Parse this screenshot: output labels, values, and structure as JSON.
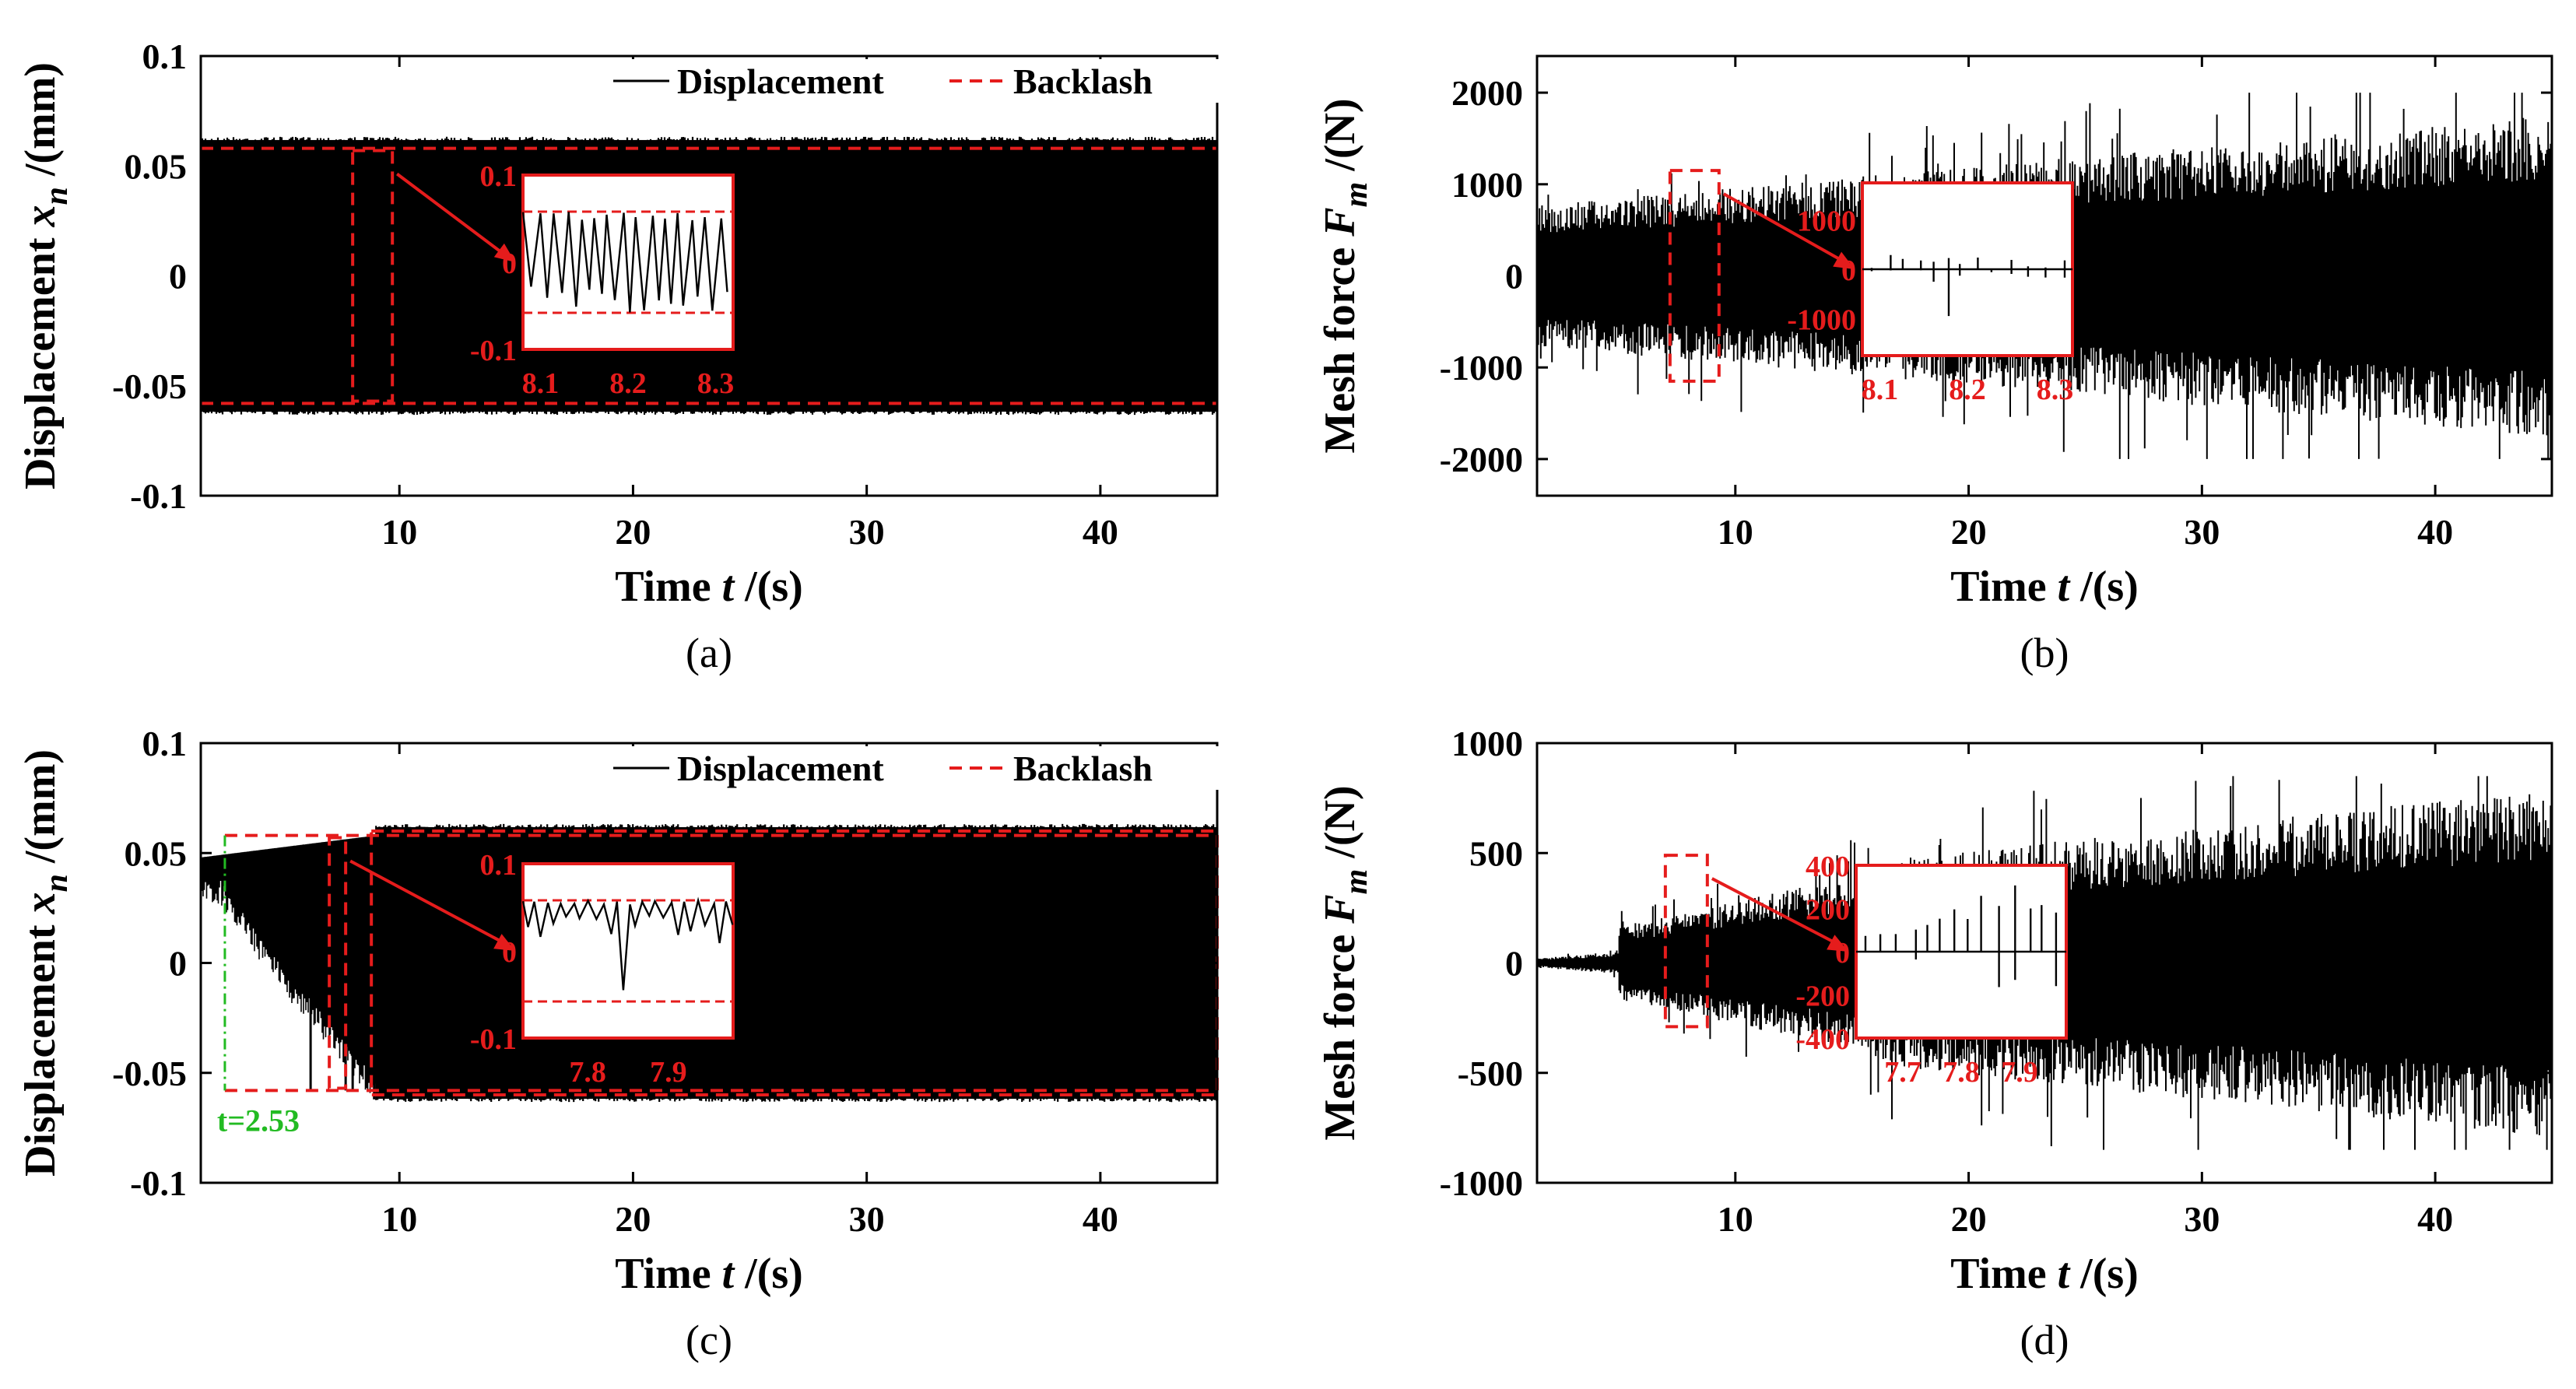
{
  "chart_data": [
    {
      "id": "a",
      "type": "line",
      "caption": "(a)",
      "xlabel": "Time t /(s)",
      "ylabel": "Displacement x_n /(mm)",
      "xlim": [
        1.5,
        45
      ],
      "ylim": [
        -0.1,
        0.1
      ],
      "xticks": [
        10,
        20,
        30,
        40
      ],
      "xtick_labels": [
        "10",
        "20",
        "30",
        "40"
      ],
      "yticks": [
        0.1,
        0.05,
        0,
        -0.05,
        -0.1
      ],
      "ytick_labels": [
        "0.1",
        "0.05",
        "0",
        "-0.05",
        "-0.1"
      ],
      "series": [
        {
          "name": "Displacement",
          "style": "solid",
          "color": "#000000",
          "signal": {
            "kind": "band",
            "start": 1.5,
            "low": -0.0625,
            "high": 0.0625
          }
        },
        {
          "name": "Backlash",
          "style": "dashed",
          "color": "#e51c1c",
          "values": [
            -0.058,
            0.058
          ]
        }
      ],
      "legend": {
        "entries": [
          "Displacement",
          "Backlash"
        ],
        "position": "top-right"
      },
      "zoom_box": {
        "x": [
          8.0,
          9.7
        ],
        "y": [
          -0.057,
          0.057
        ]
      },
      "inset": {
        "x_range": [
          8.08,
          8.32
        ],
        "y_range": [
          -0.1,
          0.1
        ],
        "xticks": [
          8.1,
          8.2,
          8.3
        ],
        "xtick_labels": [
          "8.1",
          "8.2",
          "8.3"
        ],
        "yticks": [
          0.1,
          0,
          -0.1
        ],
        "ytick_labels": [
          "0.1",
          "0",
          "-0.1"
        ],
        "backlash": 0.058,
        "signal": "impacting"
      }
    },
    {
      "id": "b",
      "type": "line",
      "caption": "(b)",
      "xlabel": "Time t /(s)",
      "ylabel": "Mesh force F_m /(N)",
      "xlim": [
        1.5,
        45
      ],
      "ylim": [
        -2400,
        2400
      ],
      "xticks": [
        10,
        20,
        30,
        40
      ],
      "xtick_labels": [
        "10",
        "20",
        "30",
        "40"
      ],
      "yticks": [
        2000,
        1000,
        0,
        -1000,
        -2000
      ],
      "ytick_labels": [
        "2000",
        "1000",
        "0",
        "-1000",
        "-2000"
      ],
      "series": [
        {
          "name": "Mesh force",
          "style": "solid",
          "color": "#000000",
          "signal": {
            "kind": "growing",
            "start": 1.5,
            "amplitude_start": 700,
            "amplitude_end": 1600,
            "peak_max": 2000
          }
        }
      ],
      "zoom_box": {
        "x": [
          7.2,
          9.3
        ],
        "y": [
          -1150,
          1150
        ]
      },
      "inset": {
        "x_range": [
          8.08,
          8.32
        ],
        "y_range": [
          -1750,
          1750
        ],
        "xticks": [
          8.1,
          8.2,
          8.3
        ],
        "xtick_labels": [
          "8.1",
          "8.2",
          "8.3"
        ],
        "yticks": [
          1000,
          0,
          -1000
        ],
        "ytick_labels": [
          "1000",
          "0",
          "-1000"
        ],
        "signal": "spikes"
      }
    },
    {
      "id": "c",
      "type": "line",
      "caption": "(c)",
      "xlabel": "Time t /(s)",
      "ylabel": "Displacement x_n /(mm)",
      "xlim": [
        1.5,
        45
      ],
      "ylim": [
        -0.1,
        0.1
      ],
      "xticks": [
        10,
        20,
        30,
        40
      ],
      "xtick_labels": [
        "10",
        "20",
        "30",
        "40"
      ],
      "yticks": [
        0.1,
        0.05,
        0,
        -0.05,
        -0.1
      ],
      "ytick_labels": [
        "0.1",
        "0.05",
        "0",
        "-0.05",
        "-0.1"
      ],
      "series": [
        {
          "name": "Displacement",
          "style": "solid",
          "color": "#000000",
          "signal": {
            "kind": "band",
            "start": 9.0,
            "low": -0.0625,
            "high": 0.0625,
            "transient_start": 1.5,
            "transient_end": 9.0
          }
        },
        {
          "name": "Backlash",
          "style": "dashed",
          "color": "#e51c1c",
          "values": [
            -0.058,
            0.058
          ]
        }
      ],
      "legend": {
        "entries": [
          "Displacement",
          "Backlash"
        ],
        "position": "top-right"
      },
      "marker_line": {
        "x": 2.53,
        "label": "t=2.53",
        "color": "#22bb22"
      },
      "zoom_box": {
        "x": [
          7.0,
          7.7
        ],
        "y": [
          -0.057,
          0.057
        ]
      },
      "zoom_box_2": {
        "x": [
          8.8,
          45
        ],
        "y": [
          -0.06,
          0.06
        ]
      },
      "inset": {
        "x_range": [
          7.72,
          7.98
        ],
        "y_range": [
          -0.1,
          0.1
        ],
        "xticks": [
          7.8,
          7.9
        ],
        "xtick_labels": [
          "7.8",
          "7.9"
        ],
        "yticks": [
          0.1,
          0,
          -0.1
        ],
        "ytick_labels": [
          "0.1",
          "0",
          "-0.1"
        ],
        "backlash": 0.058,
        "signal": "one-sided"
      }
    },
    {
      "id": "d",
      "type": "line",
      "caption": "(d)",
      "xlabel": "Time t /(s)",
      "ylabel": "Mesh force F_m /(N)",
      "xlim": [
        1.5,
        45
      ],
      "ylim": [
        -1000,
        1000
      ],
      "xticks": [
        10,
        20,
        30,
        40
      ],
      "xtick_labels": [
        "10",
        "20",
        "30",
        "40"
      ],
      "yticks": [
        1000,
        500,
        0,
        -500,
        -1000
      ],
      "ytick_labels": [
        "1000",
        "500",
        "0",
        "-500",
        "-1000"
      ],
      "series": [
        {
          "name": "Mesh force",
          "style": "solid",
          "color": "#000000",
          "signal": {
            "kind": "growing",
            "start": 1.5,
            "amplitude_start": 0,
            "amplitude_end": 700,
            "peak_max": 850
          }
        }
      ],
      "zoom_box": {
        "x": [
          7.0,
          8.8
        ],
        "y": [
          -290,
          490
        ]
      },
      "inset": {
        "x_range": [
          7.62,
          7.98
        ],
        "y_range": [
          -400,
          400
        ],
        "xticks": [
          7.7,
          7.8,
          7.9
        ],
        "xtick_labels": [
          "7.7",
          "7.8",
          "7.9"
        ],
        "yticks": [
          400,
          200,
          0,
          -200,
          -400
        ],
        "ytick_labels": [
          "400",
          "200",
          "0",
          "-200",
          "-400"
        ],
        "signal": "positive-spikes"
      }
    }
  ]
}
